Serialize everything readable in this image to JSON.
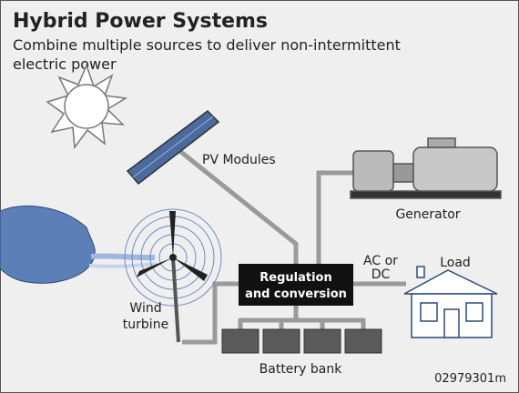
{
  "header": {
    "title": "Hybrid Power Systems",
    "subtitle_lines": [
      "Combine multiple sources to deliver non-intermittent",
      "electric power"
    ]
  },
  "nodes": [
    {
      "label_lines": [
        "PV Modules"
      ]
    },
    {
      "label_lines": [
        "Generator"
      ]
    },
    {
      "label_lines": [
        "Wind",
        "turbine"
      ]
    },
    {
      "label_lines": [
        "Regulation",
        "and conversion"
      ]
    },
    {
      "label_lines": [
        "AC or",
        "DC"
      ]
    },
    {
      "label_lines": [
        "Load"
      ]
    },
    {
      "label_lines": [
        "Battery bank"
      ]
    }
  ],
  "footer": {
    "code": "02979301m"
  }
}
